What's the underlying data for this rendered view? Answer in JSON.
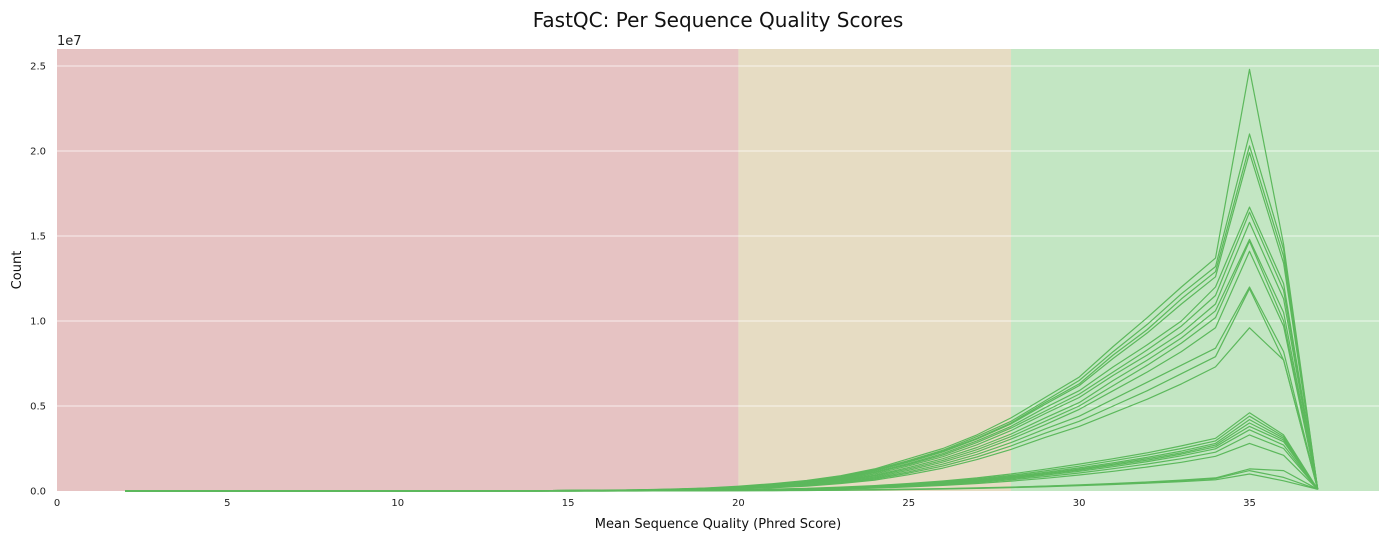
{
  "chart_data": {
    "type": "line",
    "title": "FastQC: Per Sequence Quality Scores",
    "xlabel": "Mean Sequence Quality (Phred Score)",
    "ylabel": "Count",
    "y_offset_label": "1e7",
    "xlim": [
      0,
      38.8
    ],
    "ylim": [
      0,
      26000000
    ],
    "x_ticks": [
      0,
      5,
      10,
      15,
      20,
      25,
      30,
      35
    ],
    "x_tick_labels": [
      "0",
      "5",
      "10",
      "15",
      "20",
      "25",
      "30",
      "35"
    ],
    "y_ticks": [
      0,
      5000000,
      10000000,
      15000000,
      20000000,
      25000000
    ],
    "y_tick_labels": [
      "0.0",
      "0.5",
      "1.0",
      "1.5",
      "2.0",
      "2.5"
    ],
    "grid": "horizontal",
    "line_color": "#5cb85c",
    "bands": [
      {
        "from": 0,
        "to": 20,
        "color": "#e6c3c3",
        "meaning": "fail"
      },
      {
        "from": 20,
        "to": 28,
        "color": "#e6dcc3",
        "meaning": "warn"
      },
      {
        "from": 28,
        "to": 38.8,
        "color": "#c3e6c3",
        "meaning": "pass"
      }
    ],
    "x": [
      2,
      3,
      4,
      5,
      6,
      7,
      8,
      9,
      10,
      11,
      12,
      13,
      14,
      15,
      16,
      17,
      18,
      19,
      20,
      21,
      22,
      23,
      24,
      25,
      26,
      27,
      28,
      29,
      30,
      31,
      32,
      33,
      34,
      35,
      36,
      37
    ],
    "series": [
      {
        "values": [
          20000,
          20000,
          0,
          0,
          0,
          0,
          0,
          0,
          0,
          0,
          0,
          10000,
          20000,
          30000,
          50000,
          70000,
          110000,
          170000,
          280000,
          430000,
          620000,
          900000,
          1300000,
          1900000,
          2500000,
          3300000,
          4300000,
          5500000,
          6700000,
          8500000,
          10200000,
          12000000,
          13700000,
          24800000,
          14500000,
          100000
        ]
      },
      {
        "values": [
          10000,
          10000,
          0,
          0,
          0,
          0,
          0,
          0,
          0,
          0,
          0,
          10000,
          20000,
          30000,
          40000,
          60000,
          100000,
          160000,
          260000,
          400000,
          600000,
          880000,
          1250000,
          1800000,
          2400000,
          3200000,
          4100000,
          5300000,
          6500000,
          8200000,
          9800000,
          11600000,
          13200000,
          21000000,
          14200000,
          100000
        ]
      },
      {
        "values": [
          10000,
          10000,
          0,
          0,
          0,
          0,
          0,
          0,
          0,
          0,
          0,
          10000,
          20000,
          30000,
          40000,
          60000,
          100000,
          150000,
          250000,
          380000,
          570000,
          840000,
          1200000,
          1750000,
          2350000,
          3100000,
          4000000,
          5200000,
          6300000,
          8000000,
          9500000,
          11300000,
          12900000,
          20300000,
          13800000,
          100000
        ]
      },
      {
        "values": [
          10000,
          10000,
          0,
          0,
          0,
          0,
          0,
          0,
          0,
          0,
          0,
          10000,
          20000,
          30000,
          40000,
          60000,
          90000,
          150000,
          240000,
          370000,
          550000,
          820000,
          1180000,
          1700000,
          2300000,
          3050000,
          3950000,
          5100000,
          6200000,
          7800000,
          9300000,
          11000000,
          12600000,
          19900000,
          13400000,
          100000
        ]
      },
      {
        "values": [
          0,
          0,
          0,
          0,
          0,
          0,
          0,
          0,
          0,
          0,
          0,
          10000,
          20000,
          30000,
          40000,
          60000,
          90000,
          140000,
          230000,
          350000,
          520000,
          780000,
          1120000,
          1620000,
          2200000,
          2950000,
          3800000,
          4900000,
          5900000,
          7300000,
          8600000,
          10000000,
          12000000,
          16700000,
          12200000,
          100000
        ]
      },
      {
        "values": [
          0,
          0,
          0,
          0,
          0,
          0,
          0,
          0,
          0,
          0,
          0,
          10000,
          20000,
          30000,
          40000,
          50000,
          80000,
          130000,
          220000,
          330000,
          500000,
          740000,
          1070000,
          1560000,
          2120000,
          2850000,
          3700000,
          4700000,
          5700000,
          7000000,
          8300000,
          9700000,
          11500000,
          16400000,
          11800000,
          100000
        ]
      },
      {
        "values": [
          0,
          0,
          0,
          0,
          0,
          0,
          0,
          0,
          0,
          0,
          0,
          10000,
          20000,
          30000,
          40000,
          50000,
          80000,
          120000,
          200000,
          310000,
          470000,
          700000,
          1000000,
          1480000,
          2020000,
          2720000,
          3550000,
          4550000,
          5500000,
          6800000,
          8000000,
          9300000,
          11000000,
          15800000,
          11300000,
          100000
        ]
      },
      {
        "values": [
          0,
          0,
          0,
          0,
          0,
          0,
          0,
          0,
          0,
          0,
          0,
          10000,
          20000,
          30000,
          40000,
          50000,
          70000,
          110000,
          190000,
          290000,
          440000,
          650000,
          930000,
          1380000,
          1900000,
          2560000,
          3350000,
          4300000,
          5200000,
          6500000,
          7700000,
          9000000,
          10600000,
          14800000,
          10500000,
          100000
        ]
      },
      {
        "values": [
          0,
          0,
          0,
          0,
          0,
          0,
          0,
          0,
          0,
          0,
          0,
          10000,
          20000,
          20000,
          30000,
          50000,
          70000,
          110000,
          180000,
          270000,
          410000,
          610000,
          880000,
          1300000,
          1800000,
          2430000,
          3200000,
          4100000,
          5000000,
          6200000,
          7400000,
          8700000,
          10200000,
          14700000,
          10000000,
          100000
        ]
      },
      {
        "values": [
          0,
          0,
          0,
          0,
          0,
          0,
          0,
          0,
          0,
          0,
          0,
          10000,
          20000,
          20000,
          30000,
          40000,
          60000,
          100000,
          170000,
          250000,
          380000,
          570000,
          820000,
          1220000,
          1700000,
          2300000,
          3050000,
          3900000,
          4800000,
          5900000,
          7000000,
          8200000,
          9600000,
          14100000,
          9700000,
          100000
        ]
      },
      {
        "values": [
          0,
          0,
          0,
          0,
          0,
          0,
          0,
          0,
          0,
          0,
          0,
          10000,
          10000,
          20000,
          30000,
          40000,
          60000,
          90000,
          150000,
          230000,
          350000,
          520000,
          760000,
          1130000,
          1580000,
          2150000,
          2850000,
          3650000,
          4400000,
          5400000,
          6400000,
          7400000,
          8400000,
          12000000,
          8200000,
          100000
        ]
      },
      {
        "values": [
          0,
          0,
          0,
          0,
          0,
          0,
          0,
          0,
          0,
          0,
          0,
          10000,
          10000,
          20000,
          30000,
          40000,
          50000,
          80000,
          140000,
          210000,
          320000,
          480000,
          700000,
          1050000,
          1470000,
          2000000,
          2650000,
          3400000,
          4100000,
          5000000,
          5900000,
          6900000,
          7900000,
          11900000,
          7700000,
          100000
        ]
      },
      {
        "values": [
          0,
          0,
          0,
          0,
          0,
          0,
          0,
          0,
          0,
          0,
          0,
          0,
          10000,
          20000,
          20000,
          30000,
          50000,
          80000,
          130000,
          190000,
          290000,
          440000,
          640000,
          960000,
          1350000,
          1850000,
          2450000,
          3150000,
          3800000,
          4600000,
          5400000,
          6300000,
          7300000,
          9600000,
          7700000,
          100000
        ]
      },
      {
        "values": [
          0,
          0,
          0,
          0,
          0,
          0,
          0,
          0,
          0,
          0,
          0,
          0,
          0,
          10000,
          20000,
          20000,
          30000,
          50000,
          80000,
          110000,
          160000,
          230000,
          320000,
          440000,
          590000,
          770000,
          1000000,
          1280000,
          1580000,
          1900000,
          2250000,
          2650000,
          3100000,
          4600000,
          3300000,
          100000
        ]
      },
      {
        "values": [
          0,
          0,
          0,
          0,
          0,
          0,
          0,
          0,
          0,
          0,
          0,
          0,
          0,
          10000,
          10000,
          20000,
          30000,
          40000,
          70000,
          100000,
          140000,
          200000,
          280000,
          400000,
          540000,
          710000,
          920000,
          1180000,
          1460000,
          1780000,
          2120000,
          2500000,
          2950000,
          4400000,
          3200000,
          100000
        ]
      },
      {
        "values": [
          0,
          0,
          0,
          0,
          0,
          0,
          0,
          0,
          0,
          0,
          0,
          0,
          0,
          10000,
          10000,
          20000,
          30000,
          40000,
          60000,
          90000,
          130000,
          190000,
          260000,
          370000,
          500000,
          660000,
          860000,
          1100000,
          1360000,
          1660000,
          1980000,
          2350000,
          2800000,
          4200000,
          3100000,
          100000
        ]
      },
      {
        "values": [
          0,
          0,
          0,
          0,
          0,
          0,
          0,
          0,
          0,
          0,
          0,
          0,
          0,
          10000,
          10000,
          20000,
          20000,
          40000,
          60000,
          80000,
          120000,
          170000,
          240000,
          340000,
          470000,
          620000,
          810000,
          1040000,
          1290000,
          1580000,
          1900000,
          2250000,
          2700000,
          4000000,
          3000000,
          100000
        ]
      },
      {
        "values": [
          0,
          0,
          0,
          0,
          0,
          0,
          0,
          0,
          0,
          0,
          0,
          0,
          0,
          10000,
          10000,
          20000,
          20000,
          30000,
          50000,
          80000,
          110000,
          160000,
          230000,
          320000,
          440000,
          590000,
          770000,
          990000,
          1230000,
          1510000,
          1820000,
          2170000,
          2600000,
          3800000,
          2900000,
          100000
        ]
      },
      {
        "values": [
          0,
          0,
          0,
          0,
          0,
          0,
          0,
          0,
          0,
          0,
          0,
          0,
          0,
          0,
          10000,
          10000,
          20000,
          30000,
          50000,
          70000,
          100000,
          150000,
          210000,
          300000,
          410000,
          550000,
          720000,
          930000,
          1160000,
          1430000,
          1730000,
          2070000,
          2480000,
          3600000,
          2700000,
          100000
        ]
      },
      {
        "values": [
          0,
          0,
          0,
          0,
          0,
          0,
          0,
          0,
          0,
          0,
          0,
          0,
          0,
          0,
          10000,
          10000,
          20000,
          30000,
          40000,
          60000,
          90000,
          130000,
          190000,
          270000,
          370000,
          500000,
          660000,
          850000,
          1060000,
          1310000,
          1590000,
          1900000,
          2280000,
          3300000,
          2500000,
          100000
        ]
      },
      {
        "values": [
          0,
          0,
          0,
          0,
          0,
          0,
          0,
          0,
          0,
          0,
          0,
          0,
          0,
          0,
          10000,
          10000,
          20000,
          20000,
          40000,
          60000,
          80000,
          120000,
          170000,
          240000,
          330000,
          440000,
          580000,
          750000,
          940000,
          1160000,
          1410000,
          1690000,
          2040000,
          2800000,
          2100000,
          100000
        ]
      },
      {
        "values": [
          0,
          0,
          0,
          0,
          0,
          0,
          0,
          0,
          0,
          0,
          0,
          0,
          0,
          0,
          0,
          10000,
          10000,
          10000,
          20000,
          30000,
          40000,
          60000,
          80000,
          110000,
          140000,
          180000,
          230000,
          290000,
          360000,
          440000,
          530000,
          640000,
          770000,
          1300000,
          1200000,
          100000
        ]
      },
      {
        "values": [
          0,
          0,
          0,
          0,
          0,
          0,
          0,
          0,
          0,
          0,
          0,
          0,
          0,
          0,
          0,
          10000,
          10000,
          10000,
          20000,
          30000,
          40000,
          50000,
          70000,
          100000,
          130000,
          170000,
          220000,
          280000,
          340000,
          420000,
          510000,
          610000,
          730000,
          1200000,
          800000,
          100000
        ]
      },
      {
        "values": [
          0,
          0,
          0,
          0,
          0,
          0,
          0,
          0,
          0,
          0,
          0,
          0,
          0,
          0,
          0,
          0,
          10000,
          10000,
          20000,
          20000,
          30000,
          50000,
          60000,
          90000,
          120000,
          150000,
          200000,
          250000,
          310000,
          380000,
          460000,
          550000,
          660000,
          1000000,
          600000,
          100000
        ]
      }
    ]
  }
}
